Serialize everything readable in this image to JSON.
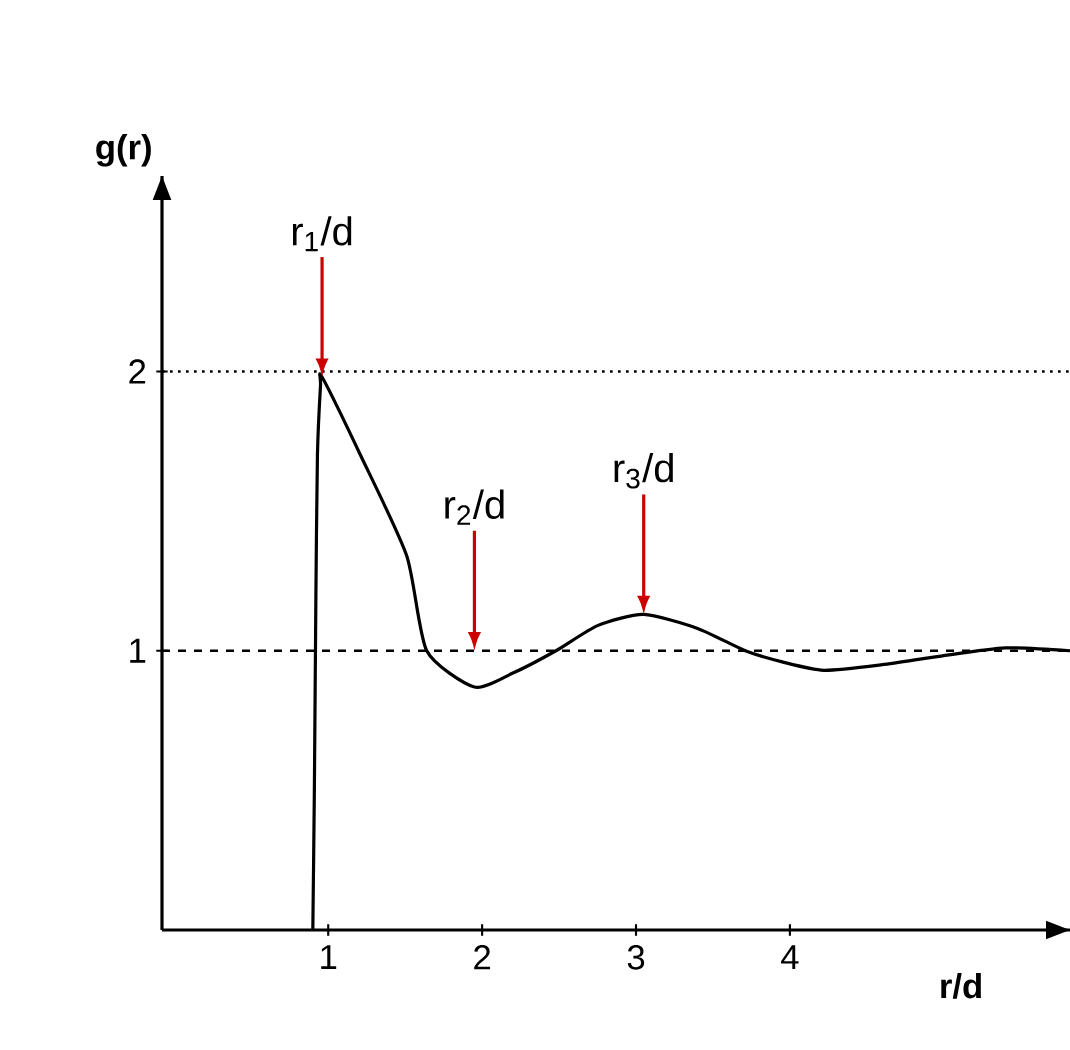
{
  "chart_data": {
    "type": "line",
    "xlabel": "r/d",
    "ylabel": "g(r)",
    "xlim": [
      -0.08,
      5.82
    ],
    "ylim": [
      0,
      2.7
    ],
    "xticks": [
      1,
      2,
      3,
      4
    ],
    "yticks": [
      1,
      2
    ],
    "x": [
      0.9,
      0.91,
      0.92,
      0.93,
      0.95,
      0.96,
      1.21,
      1.51,
      1.64,
      1.95,
      2.2,
      2.48,
      2.75,
      3.05,
      3.4,
      3.71,
      3.95,
      4.22,
      4.6,
      4.97,
      5.4,
      5.82
    ],
    "series": [
      {
        "color": "#000000",
        "values": [
          0,
          0.5,
          1.2,
          1.7,
          1.95,
          1.98,
          1.7,
          1.34,
          1.0,
          0.87,
          0.92,
          1.0,
          1.09,
          1.13,
          1.08,
          1.0,
          0.96,
          0.93,
          0.95,
          0.98,
          1.01,
          1.0
        ]
      }
    ],
    "ref_lines": [
      {
        "axis": "y",
        "value": 2,
        "line_style": "dotted"
      },
      {
        "axis": "y",
        "value": 1,
        "line_style": "dashed"
      }
    ],
    "annotations": [
      {
        "text": "r$_{1}$/d",
        "x": 0.96,
        "y": 1.98
      },
      {
        "text": "r$_{2}$/d",
        "x": 1.95,
        "y": 1
      },
      {
        "text": "r$_{3}$/d",
        "x": 3.05,
        "y": 1.13
      }
    ]
  }
}
